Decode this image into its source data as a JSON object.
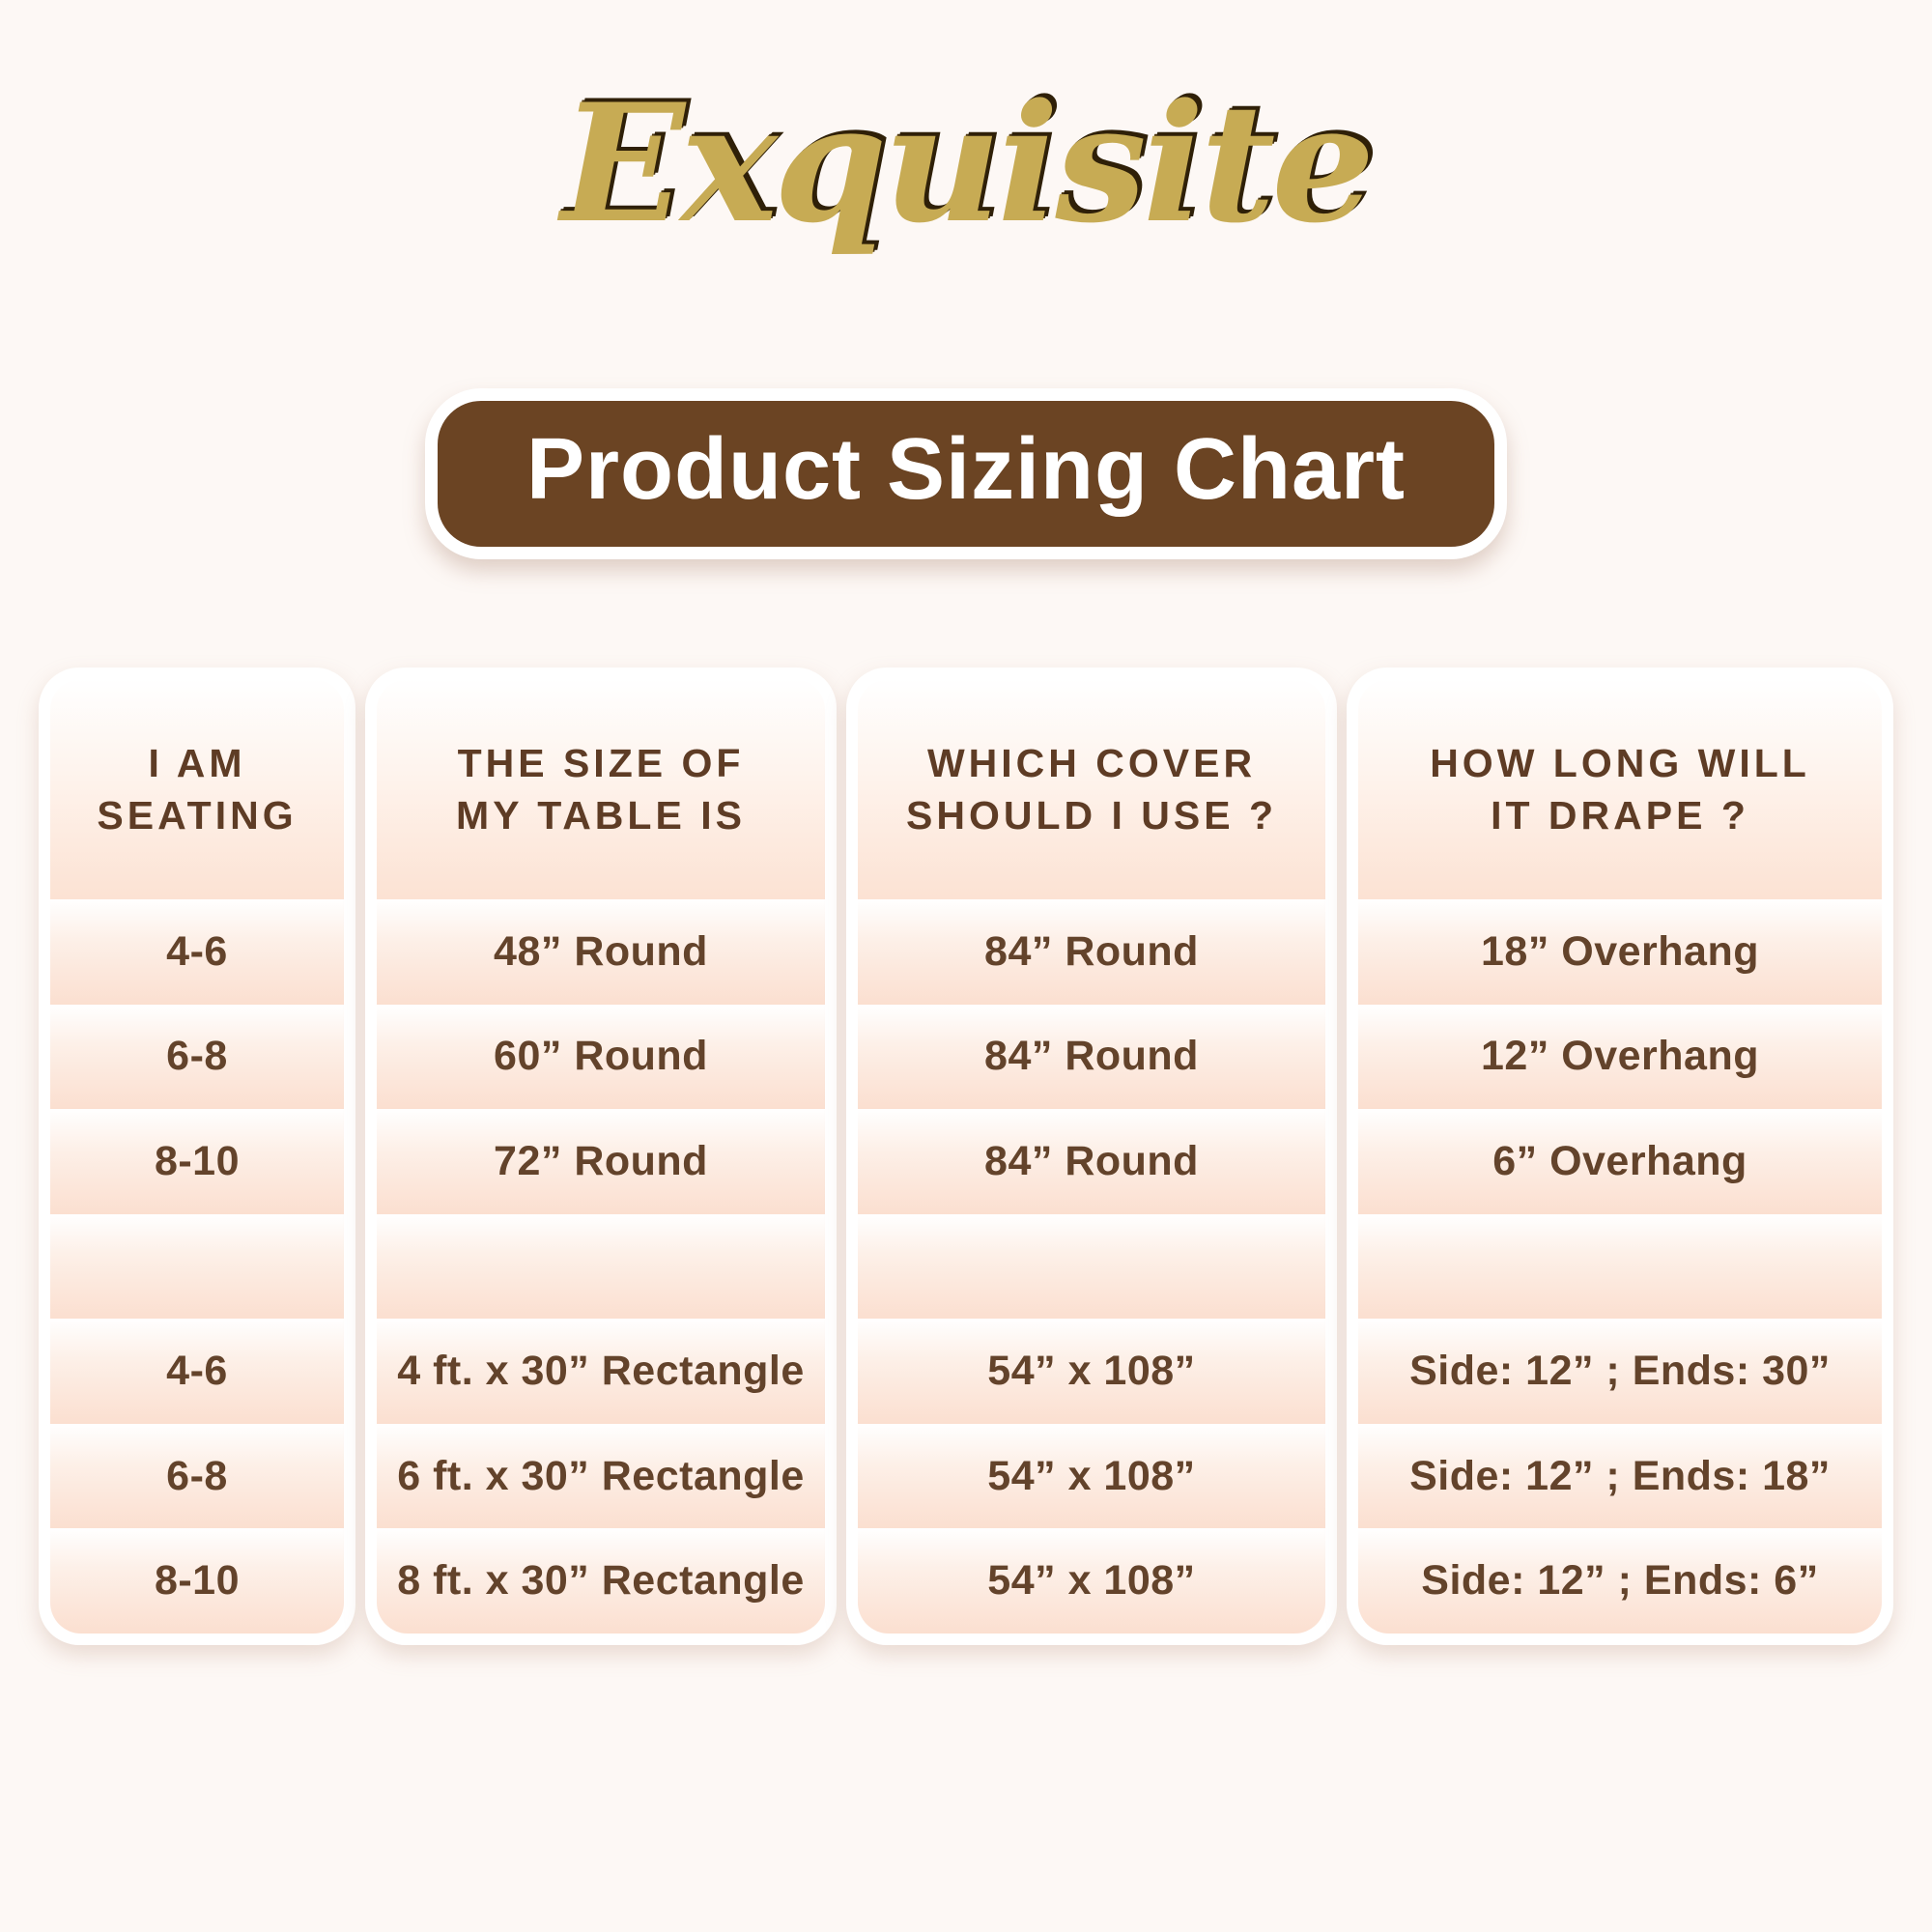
{
  "logo": {
    "text": "Exquisite"
  },
  "banner": {
    "title": "Product Sizing Chart"
  },
  "colors": {
    "page_bg": "#fdf8f5",
    "banner_bg": "#6b4423",
    "banner_text": "#ffffff",
    "logo_gold": "#c7ab54",
    "header_text": "#5e3c25",
    "cell_text": "#63432b",
    "row_peach": "#fbdfd0",
    "card_bg": "#ffffff"
  },
  "display": {
    "header_lines": [
      [
        "I AM",
        "SEATING"
      ],
      [
        "THE SIZE OF",
        "MY TABLE IS"
      ],
      [
        "WHICH COVER",
        "SHOULD I USE ?"
      ],
      [
        "HOW LONG WILL",
        "IT DRAPE ?"
      ]
    ]
  },
  "chart_data": {
    "type": "table",
    "title": "Product Sizing Chart",
    "columns": [
      "I AM SEATING",
      "THE SIZE OF MY TABLE IS",
      "WHICH COVER SHOULD I USE ?",
      "HOW LONG WILL IT DRAPE ?"
    ],
    "rows": [
      [
        "4-6",
        "48” Round",
        "84” Round",
        "18” Overhang"
      ],
      [
        "6-8",
        "60” Round",
        "84” Round",
        "12” Overhang"
      ],
      [
        "8-10",
        "72” Round",
        "84” Round",
        "6” Overhang"
      ],
      [
        "",
        "",
        "",
        ""
      ],
      [
        "4-6",
        "4 ft. x 30” Rectangle",
        "54” x 108”",
        "Side: 12” ; Ends: 30”"
      ],
      [
        "6-8",
        "6 ft. x 30” Rectangle",
        "54” x 108”",
        "Side: 12” ; Ends: 18”"
      ],
      [
        "8-10",
        "8 ft. x 30” Rectangle",
        "54” x 108”",
        "Side: 12” ; Ends: 6”"
      ]
    ]
  }
}
